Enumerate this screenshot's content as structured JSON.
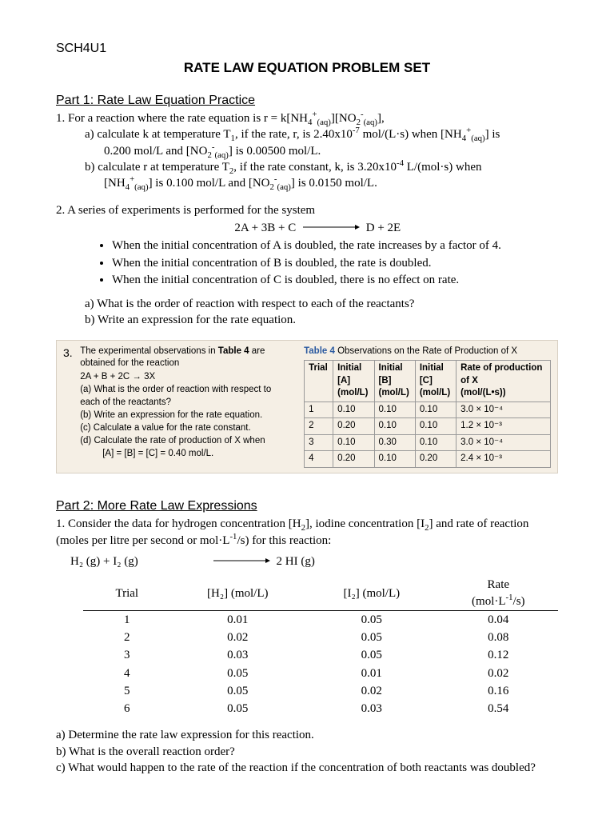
{
  "course": "SCH4U1",
  "title": "RATE LAW EQUATION PROBLEM SET",
  "part1": {
    "heading": "Part 1: Rate Law Equation Practice",
    "q1": {
      "stem_pre": "1.  For a reaction where the rate equation is r = k[NH",
      "stem_post": "],",
      "a_pre": "a) calculate k at temperature T",
      "a_mid1": ", if the rate, r, is 2.40x10",
      "a_mid2": " mol/(L·s) when [NH",
      "a_end": "] is",
      "a_line2_pre": "0.200 mol/L and [NO",
      "a_line2_post": "] is 0.00500 mol/L.",
      "b_pre": "b) calculate r at temperature T",
      "b_mid1": ", if the rate constant, k, is 3.20x10",
      "b_mid2": " L/(mol·s) when",
      "b_line2_pre": "[NH",
      "b_line2_mid": "] is 0.100 mol/L and [NO",
      "b_line2_post": "] is 0.0150 mol/L."
    },
    "q2": {
      "stem": "2.  A series of experiments is performed for the system",
      "eq_left": "2A + 3B + C",
      "eq_right": "D + 2E",
      "bullets": [
        "When the initial concentration of A is doubled, the rate increases by a factor of 4.",
        "When the initial concentration of B is doubled, the rate is doubled.",
        "When the initial concentration of C is doubled, there is no effect on rate."
      ],
      "a": "a) What is the order of reaction with respect to each of the reactants?",
      "b": "b) Write an expression for the rate equation."
    },
    "q3": {
      "num": "3.",
      "intro1": "The experimental observations in ",
      "intro1b": "Table 4",
      "intro1c": " are obtained for the reaction",
      "eq": "2A + B + 2C → 3X",
      "qa": "(a)  What is the order of reaction with respect to each of the reactants?",
      "qb": "(b)  Write an expression for the rate equation.",
      "qc": "(c)  Calculate a value for the rate constant.",
      "qd": "(d)  Calculate the rate of production of X when",
      "qd2": "[A] = [B] = [C] = 0.40 mol/L.",
      "tcap1": "Table 4",
      "tcap2": "   Observations on the Rate of Production of X",
      "cols": [
        "Trial",
        "Initial [A] (mol/L)",
        "Initial [B] (mol/L)",
        "Initial [C] (mol/L)",
        "Rate of production of X (mol/(L•s))"
      ],
      "rows": [
        [
          "1",
          "0.10",
          "0.10",
          "0.10",
          "3.0 × 10⁻⁴"
        ],
        [
          "2",
          "0.20",
          "0.10",
          "0.10",
          "1.2 × 10⁻³"
        ],
        [
          "3",
          "0.10",
          "0.30",
          "0.10",
          "3.0 × 10⁻⁴"
        ],
        [
          "4",
          "0.20",
          "0.10",
          "0.20",
          "2.4 × 10⁻³"
        ]
      ]
    }
  },
  "part2": {
    "heading": "Part 2: More Rate Law Expressions",
    "q1a": "1.  Consider the data for hydrogen concentration [H",
    "q1b": "], iodine concentration [I",
    "q1c": "] and rate of reaction (moles per litre per second or mol·L",
    "q1d": "/s) for this reaction:",
    "reaction_left": "H₂ (g)   +     I₂ (g)",
    "reaction_right": "2 HI (g)",
    "cols": [
      "Trial",
      "[H₂] (mol/L)",
      "[I₂] (mol/L)",
      "Rate (mol·L⁻¹/s)"
    ],
    "rows": [
      [
        "1",
        "0.01",
        "0.05",
        "0.04"
      ],
      [
        "2",
        "0.02",
        "0.05",
        "0.08"
      ],
      [
        "3",
        "0.03",
        "0.05",
        "0.12"
      ],
      [
        "4",
        "0.05",
        "0.01",
        "0.02"
      ],
      [
        "5",
        "0.05",
        "0.02",
        "0.16"
      ],
      [
        "6",
        "0.05",
        "0.03",
        "0.54"
      ]
    ],
    "a": "a) Determine the rate law expression for this reaction.",
    "b": "b) What is the overall reaction order?",
    "c": "c) What would happen to the rate of the reaction if the concentration of both reactants was doubled?"
  }
}
